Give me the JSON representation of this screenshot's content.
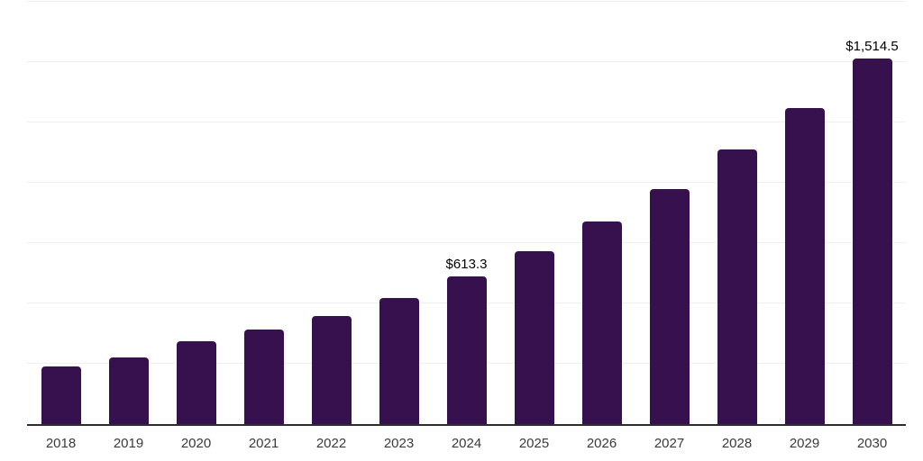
{
  "chart_data": {
    "type": "bar",
    "title": "",
    "xlabel": "",
    "ylabel": "",
    "categories": [
      "2018",
      "2019",
      "2020",
      "2021",
      "2022",
      "2023",
      "2024",
      "2025",
      "2026",
      "2027",
      "2028",
      "2029",
      "2030"
    ],
    "values": [
      237,
      278,
      344,
      390,
      446,
      524,
      613.3,
      717,
      840,
      973,
      1137,
      1308,
      1514.5
    ],
    "data_labels": {
      "2024": "$613.3",
      "2030": "$1,514.5"
    },
    "ylim": [
      0,
      1750
    ],
    "gridline_step": 250,
    "grid": "horizontal-only",
    "legend": "none",
    "colors": {
      "bar": "#36114E",
      "gridline": "#efeff1",
      "axis_line": "#2e2e2e",
      "tick_label": "#3a3a3a",
      "data_label": "#000000",
      "background": "#ffffff"
    }
  }
}
